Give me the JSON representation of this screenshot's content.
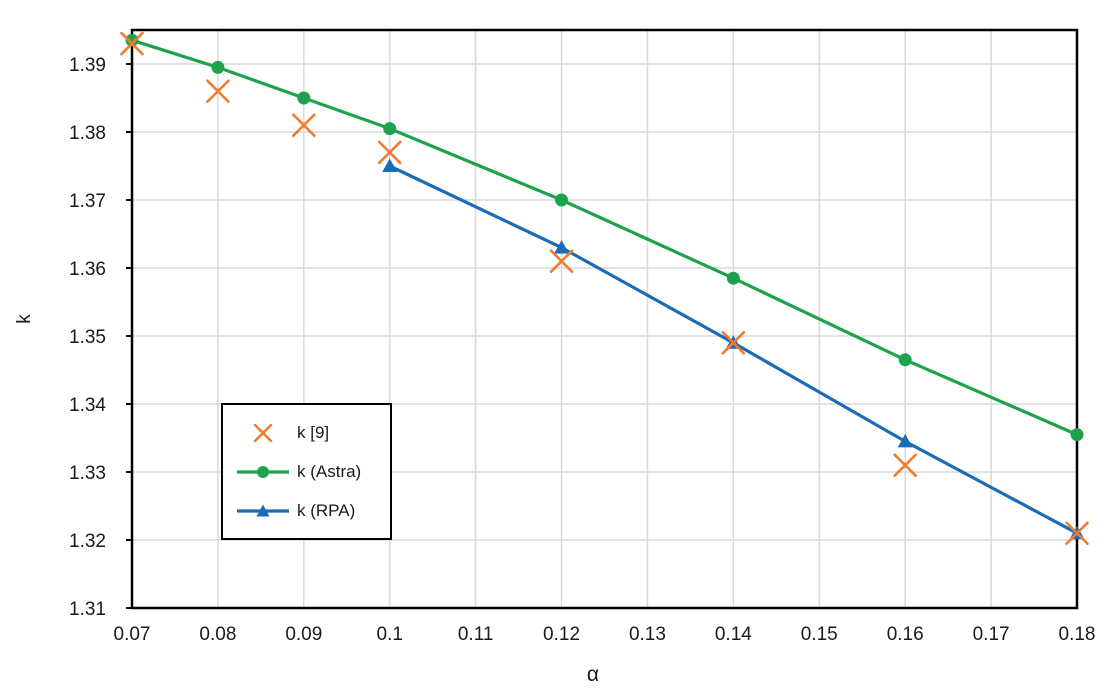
{
  "chart_data": {
    "type": "line",
    "title": "",
    "xlabel": "α",
    "ylabel": "k",
    "xlim": [
      0.07,
      0.18
    ],
    "ylim": [
      1.31,
      1.395
    ],
    "xtick_labels": [
      "0.07",
      "0.08",
      "0.09",
      "0.1",
      "0.11",
      "0.12",
      "0.13",
      "0.14",
      "0.15",
      "0.16",
      "0.17",
      "0.18"
    ],
    "xtick_values": [
      0.07,
      0.08,
      0.09,
      0.1,
      0.11,
      0.12,
      0.13,
      0.14,
      0.15,
      0.16,
      0.17,
      0.18
    ],
    "ytick_labels": [
      "1.31",
      "1.32",
      "1.33",
      "1.34",
      "1.35",
      "1.36",
      "1.37",
      "1.38",
      "1.39"
    ],
    "ytick_values": [
      1.31,
      1.32,
      1.33,
      1.34,
      1.35,
      1.36,
      1.37,
      1.38,
      1.39
    ],
    "grid": true,
    "legend_position": "inside-left",
    "colors": {
      "grid": "#D9D9D9",
      "axis": "#000000",
      "text": "#1A1A1A",
      "background": "#FFFFFF"
    },
    "series": [
      {
        "name": "k [9]",
        "marker": "x",
        "line": false,
        "color": "#ED7D31",
        "x": [
          0.07,
          0.08,
          0.09,
          0.1,
          0.12,
          0.14,
          0.16,
          0.18
        ],
        "y": [
          1.393,
          1.386,
          1.381,
          1.377,
          1.361,
          1.349,
          1.331,
          1.321
        ]
      },
      {
        "name": "k (Astra)",
        "marker": "circle",
        "line": true,
        "color": "#1FA24D",
        "x": [
          0.07,
          0.08,
          0.09,
          0.1,
          0.12,
          0.14,
          0.16,
          0.18
        ],
        "y": [
          1.3935,
          1.3895,
          1.385,
          1.3805,
          1.37,
          1.3585,
          1.3465,
          1.3355
        ]
      },
      {
        "name": "k (RPA)",
        "marker": "triangle",
        "line": true,
        "color": "#1B6CB8",
        "x": [
          0.1,
          0.12,
          0.14,
          0.16,
          0.18
        ],
        "y": [
          1.375,
          1.363,
          1.349,
          1.3345,
          1.321
        ]
      }
    ]
  }
}
